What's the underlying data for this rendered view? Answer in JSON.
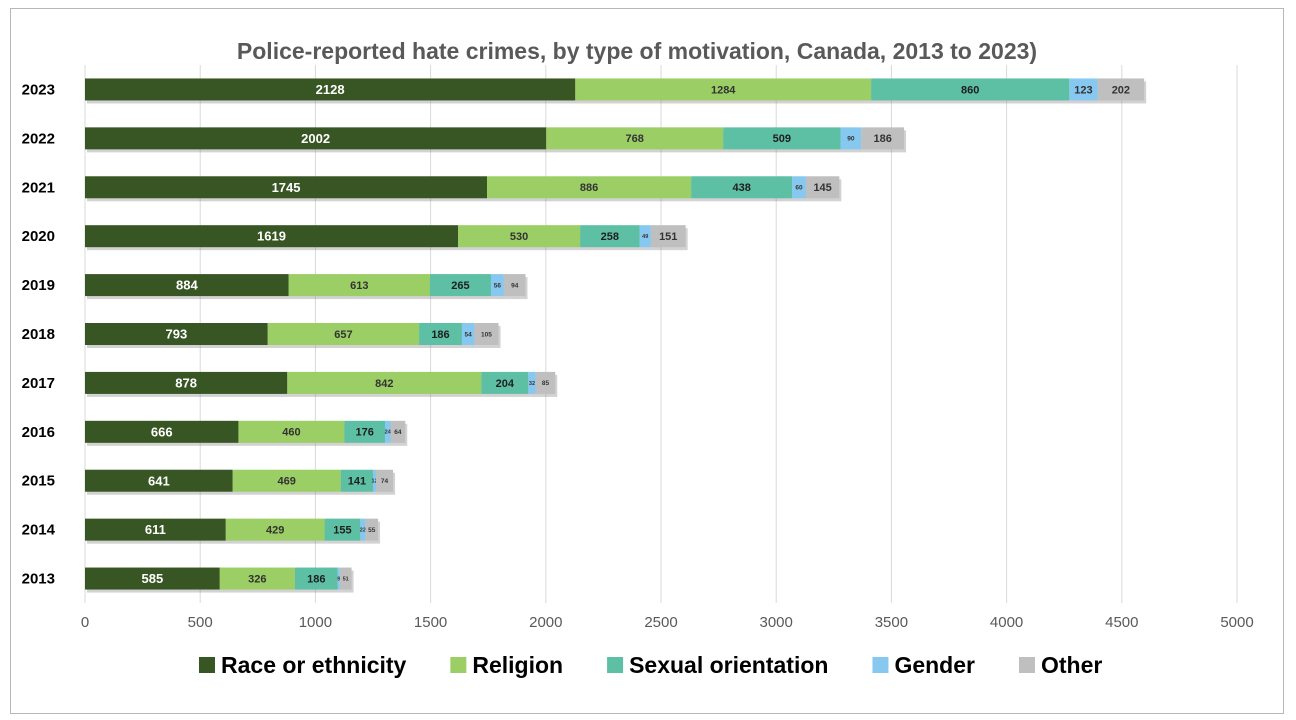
{
  "chart_data": {
    "type": "bar",
    "orientation": "horizontal",
    "stacked": true,
    "title": "Police-reported hate crimes, by type of motivation, Canada, 2013 to 2023)",
    "categories": [
      "2023",
      "2022",
      "2021",
      "2020",
      "2019",
      "2018",
      "2017",
      "2016",
      "2015",
      "2014",
      "2013"
    ],
    "series": [
      {
        "name": "Race or ethnicity",
        "color": "#375623",
        "label_color": "#ffffff",
        "values": [
          2128,
          2002,
          1745,
          1619,
          884,
          793,
          878,
          666,
          641,
          611,
          585
        ]
      },
      {
        "name": "Religion",
        "color": "#9bce65",
        "label_color": "#333333",
        "values": [
          1284,
          768,
          886,
          530,
          613,
          657,
          842,
          460,
          469,
          429,
          326
        ]
      },
      {
        "name": "Sexual orientation",
        "color": "#5dbfa4",
        "label_color": "#1e1e1e",
        "values": [
          860,
          509,
          438,
          258,
          265,
          186,
          204,
          176,
          141,
          155,
          186
        ]
      },
      {
        "name": "Gender",
        "color": "#86c8ef",
        "label_color": "#333333",
        "values": [
          123,
          90,
          60,
          49,
          56,
          54,
          32,
          24,
          12,
          22,
          9
        ]
      },
      {
        "name": "Other",
        "color": "#bfbfbf",
        "label_color": "#333333",
        "values": [
          202,
          186,
          145,
          151,
          94,
          105,
          85,
          64,
          74,
          55,
          51
        ]
      }
    ],
    "xlim": [
      0,
      5000
    ],
    "xticks": [
      0,
      500,
      1000,
      1500,
      2000,
      2500,
      3000,
      3500,
      4000,
      4500,
      5000
    ],
    "grid": true,
    "legend": "bottom"
  }
}
